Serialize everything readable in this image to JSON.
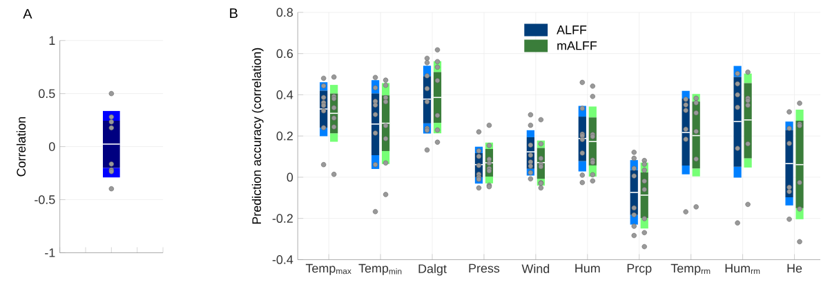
{
  "chart_data": [
    {
      "type": "box",
      "title": "A",
      "ylabel": "Correlation",
      "categories": [
        null
      ],
      "ylim": [
        -1,
        1
      ],
      "yticks": [
        -1,
        -0.5,
        0,
        0.5,
        1
      ],
      "grid": "y",
      "series": [
        {
          "color": "#000080",
          "boxes": [
            {
              "low": -0.29,
              "q1": -0.2,
              "median": 0.024,
              "q3": 0.244,
              "high": 0.336
            }
          ]
        },
        {
          "type": "scatter",
          "color": "#999999",
          "x": [
            null,
            null,
            null,
            null,
            null,
            null,
            null,
            null
          ],
          "values": [
            0.5,
            0.28,
            0.233,
            0.177,
            -0.164,
            -0.22,
            -0.235,
            -0.397
          ]
        }
      ]
    },
    {
      "type": "box",
      "title": "B",
      "ylabel": "Prediction accuracy (correlation)",
      "categories": [
        "Temp$_{max}$",
        "Temp$_{min}$",
        "Dalgt",
        "Press",
        "Wind",
        "Hum",
        "Prcp",
        "Temp$_{rm}$",
        "Hum$_{rm}$",
        "He"
      ],
      "ylim": [
        -0.4,
        0.8
      ],
      "yticks": [
        -0.4,
        -0.2,
        0,
        0.2,
        0.4,
        0.6,
        0.8
      ],
      "grid": true,
      "legend": "top",
      "series": [
        {
          "name": "ALFF",
          "color": "#003d7a",
          "boxes": [
            {
              "low": 0.199,
              "q1": 0.24,
              "median": 0.331,
              "q3": 0.42,
              "high": 0.461
            },
            {
              "low": 0.04,
              "q1": 0.107,
              "median": 0.258,
              "q3": 0.406,
              "high": 0.471
            },
            {
              "low": 0.212,
              "q1": 0.262,
              "median": 0.379,
              "q3": 0.49,
              "high": 0.541
            },
            {
              "low": -0.031,
              "q1": 0.0,
              "median": 0.061,
              "q3": 0.117,
              "high": 0.148
            },
            {
              "low": 0.008,
              "q1": 0.041,
              "median": 0.123,
              "q3": 0.194,
              "high": 0.228
            },
            {
              "low": 0.028,
              "q1": 0.078,
              "median": 0.188,
              "q3": 0.294,
              "high": 0.346
            },
            {
              "low": -0.23,
              "q1": -0.183,
              "median": -0.074,
              "q3": 0.034,
              "high": 0.083
            },
            {
              "low": 0.014,
              "q1": 0.057,
              "median": 0.217,
              "q3": 0.381,
              "high": 0.419
            },
            {
              "low": -0.002,
              "q1": 0.051,
              "median": 0.27,
              "q3": 0.487,
              "high": 0.54
            },
            {
              "low": -0.137,
              "q1": -0.097,
              "median": 0.066,
              "q3": 0.229,
              "high": 0.27
            }
          ]
        },
        {
          "name": "mALFF",
          "color": "#3a7d3a",
          "boxes": [
            {
              "low": 0.172,
              "q1": 0.213,
              "median": 0.31,
              "q3": 0.406,
              "high": 0.448
            },
            {
              "low": 0.064,
              "q1": 0.127,
              "median": 0.262,
              "q3": 0.397,
              "high": 0.457
            },
            {
              "low": 0.213,
              "q1": 0.264,
              "median": 0.387,
              "q3": 0.51,
              "high": 0.563
            },
            {
              "low": -0.03,
              "q1": 0.003,
              "median": 0.07,
              "q3": 0.137,
              "high": 0.168
            },
            {
              "low": -0.041,
              "q1": -0.008,
              "median": 0.071,
              "q3": 0.142,
              "high": 0.178
            },
            {
              "low": 0.003,
              "q1": 0.057,
              "median": 0.173,
              "q3": 0.29,
              "high": 0.343
            },
            {
              "low": -0.249,
              "q1": -0.198,
              "median": -0.087,
              "q3": 0.023,
              "high": 0.071
            },
            {
              "low": 0.004,
              "q1": 0.042,
              "median": 0.202,
              "q3": 0.367,
              "high": 0.404
            },
            {
              "low": 0.047,
              "q1": 0.092,
              "median": 0.278,
              "q3": 0.457,
              "high": 0.503
            },
            {
              "low": -0.204,
              "q1": -0.15,
              "median": 0.061,
              "q3": 0.274,
              "high": 0.328
            }
          ]
        },
        {
          "type": "scatter",
          "color": "#999999",
          "x": [
            "Temp$_{max}$",
            "Temp$_{max}$",
            "Temp$_{max}$",
            "Temp$_{max}$",
            "Temp$_{max}$",
            "Temp$_{max}$",
            "Temp$_{max}$",
            "Temp$_{max}$",
            "Temp$_{min}$",
            "Temp$_{min}$",
            "Temp$_{min}$",
            "Temp$_{min}$",
            "Temp$_{min}$",
            "Temp$_{min}$",
            "Temp$_{min}$",
            "Temp$_{min}$",
            "Dalgt",
            "Dalgt",
            "Dalgt",
            "Dalgt",
            "Dalgt",
            "Dalgt",
            "Dalgt",
            "Dalgt",
            "Press",
            "Press",
            "Press",
            "Press",
            "Press",
            "Press",
            "Press",
            "Press",
            "Wind",
            "Wind",
            "Wind",
            "Wind",
            "Wind",
            "Wind",
            "Wind",
            "Wind",
            "Hum",
            "Hum",
            "Hum",
            "Hum",
            "Hum",
            "Hum",
            "Hum",
            "Hum",
            "Prcp",
            "Prcp",
            "Prcp",
            "Prcp",
            "Prcp",
            "Prcp",
            "Prcp",
            "Prcp",
            "Temp$_{rm}$",
            "Temp$_{rm}$",
            "Temp$_{rm}$",
            "Temp$_{rm}$",
            "Temp$_{rm}$",
            "Temp$_{rm}$",
            "Hum$_{rm}$",
            "Hum$_{rm}$",
            "Hum$_{rm}$",
            "Hum$_{rm}$",
            "Hum$_{rm}$",
            "Hum$_{rm}$",
            "He",
            "He",
            "He",
            "He",
            "He",
            "He"
          ],
          "values": [
            0.48,
            0.443,
            0.387,
            0.362,
            0.348,
            0.322,
            0.24,
            0.061,
            0.484,
            0.434,
            0.368,
            0.35,
            0.304,
            0.214,
            0.061,
            -0.167,
            0.577,
            0.556,
            0.492,
            0.43,
            0.366,
            0.237,
            0.228,
            0.132,
            0.22,
            0.128,
            0.101,
            0.057,
            0.014,
            0.0,
            -0.01,
            -0.052,
            0.303,
            0.252,
            0.156,
            0.107,
            0.074,
            0.054,
            0.022,
            -0.008,
            0.46,
            0.334,
            0.209,
            0.201,
            0.183,
            0.117,
            0.01,
            -0.026,
            0.121,
            0.092,
            0.043,
            0.006,
            -0.149,
            -0.183,
            -0.238,
            -0.283,
            0.378,
            0.351,
            0.324,
            0.233,
            0.184,
            -0.168,
            0.503,
            0.453,
            0.4,
            0.339,
            0.14,
            -0.222,
            0.317,
            0.237,
            0.164,
            -0.049,
            -0.07,
            -0.204
          ]
        },
        {
          "type": "scatter",
          "color": "#999999",
          "x": [
            "Temp$_{max}$",
            "Temp$_{max}$",
            "Temp$_{max}$",
            "Temp$_{max}$",
            "Temp$_{max}$",
            "Temp$_{max}$",
            "Temp$_{max}$",
            "Temp$_{min}$",
            "Temp$_{min}$",
            "Temp$_{min}$",
            "Temp$_{min}$",
            "Temp$_{min}$",
            "Temp$_{min}$",
            "Temp$_{min}$",
            "Temp$_{min}$",
            "Dalgt",
            "Dalgt",
            "Dalgt",
            "Dalgt",
            "Dalgt",
            "Dalgt",
            "Dalgt",
            "Press",
            "Press",
            "Press",
            "Press",
            "Press",
            "Press",
            "Press",
            "Press",
            "Wind",
            "Wind",
            "Wind",
            "Wind",
            "Wind",
            "Wind",
            "Wind",
            "Wind",
            "Hum",
            "Hum",
            "Hum",
            "Hum",
            "Hum",
            "Hum",
            "Hum",
            "Hum",
            "Prcp",
            "Prcp",
            "Prcp",
            "Prcp",
            "Prcp",
            "Prcp",
            "Prcp",
            "Prcp",
            "Temp$_{rm}$",
            "Temp$_{rm}$",
            "Temp$_{rm}$",
            "Temp$_{rm}$",
            "Temp$_{rm}$",
            "Temp$_{rm}$",
            "Hum$_{rm}$",
            "Hum$_{rm}$",
            "Hum$_{rm}$",
            "Hum$_{rm}$",
            "Hum$_{rm}$",
            "Hum$_{rm}$",
            "He",
            "He",
            "He",
            "He",
            "He",
            "He"
          ],
          "values": [
            0.486,
            0.392,
            0.381,
            0.337,
            0.287,
            0.244,
            0.014,
            0.471,
            0.446,
            0.386,
            0.366,
            0.25,
            0.187,
            0.069,
            -0.084,
            0.618,
            0.561,
            0.534,
            0.469,
            0.3,
            0.229,
            0.17,
            0.252,
            0.154,
            0.087,
            0.068,
            0.042,
            0.031,
            -0.039,
            -0.046,
            0.279,
            0.162,
            0.091,
            0.063,
            0.051,
            -0.027,
            -0.03,
            -0.052,
            0.442,
            0.392,
            0.207,
            0.197,
            0.083,
            0.072,
            0.012,
            -0.018,
            0.081,
            0.063,
            0.034,
            -0.019,
            -0.06,
            -0.201,
            -0.269,
            -0.337,
            0.383,
            0.361,
            0.312,
            0.222,
            0.088,
            -0.144,
            0.51,
            0.383,
            0.372,
            0.349,
            0.162,
            -0.132,
            0.359,
            0.258,
            0.25,
            -0.026,
            -0.154,
            -0.313
          ]
        }
      ]
    }
  ]
}
